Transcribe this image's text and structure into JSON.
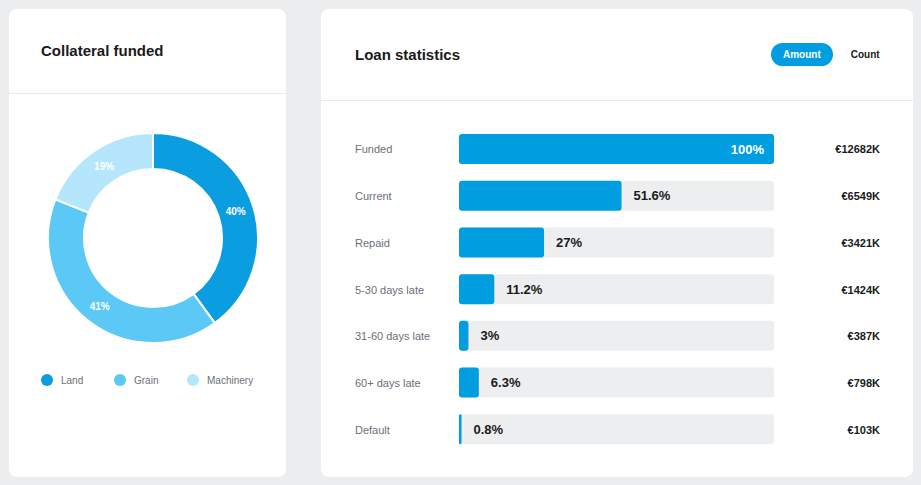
{
  "chart_data": [
    {
      "type": "pie",
      "title": "Collateral funded",
      "categories": [
        "Land",
        "Grain",
        "Machinery"
      ],
      "values": [
        40,
        41,
        19
      ],
      "value_labels": [
        "40%",
        "41%",
        "19%"
      ],
      "colors": [
        "#0a9ee0",
        "#5cc8f5",
        "#b5e6fb"
      ],
      "data_labels": true,
      "legend": "bottom"
    },
    {
      "type": "bar",
      "orientation": "horizontal",
      "title": "Loan statistics",
      "categories": [
        "Funded",
        "Current",
        "Repaid",
        "5-30 days late",
        "31-60 days late",
        "60+ days late",
        "Default"
      ],
      "values": [
        100,
        51.6,
        27,
        11.2,
        3,
        6.3,
        0.8
      ],
      "value_labels": [
        "100%",
        "51.6%",
        "27%",
        "11.2%",
        "3%",
        "6.3%",
        "0.8%"
      ],
      "amount_labels": [
        "€12682K",
        "€6549K",
        "€3421K",
        "€1424K",
        "€387K",
        "€798K",
        "€103K"
      ],
      "xlim": [
        0,
        100
      ],
      "color": "#009ee0",
      "data_labels": true,
      "tick_labels": "y",
      "grid": false
    }
  ],
  "controls": {
    "options": [
      "Amount",
      "Count"
    ],
    "selected": "Amount"
  }
}
